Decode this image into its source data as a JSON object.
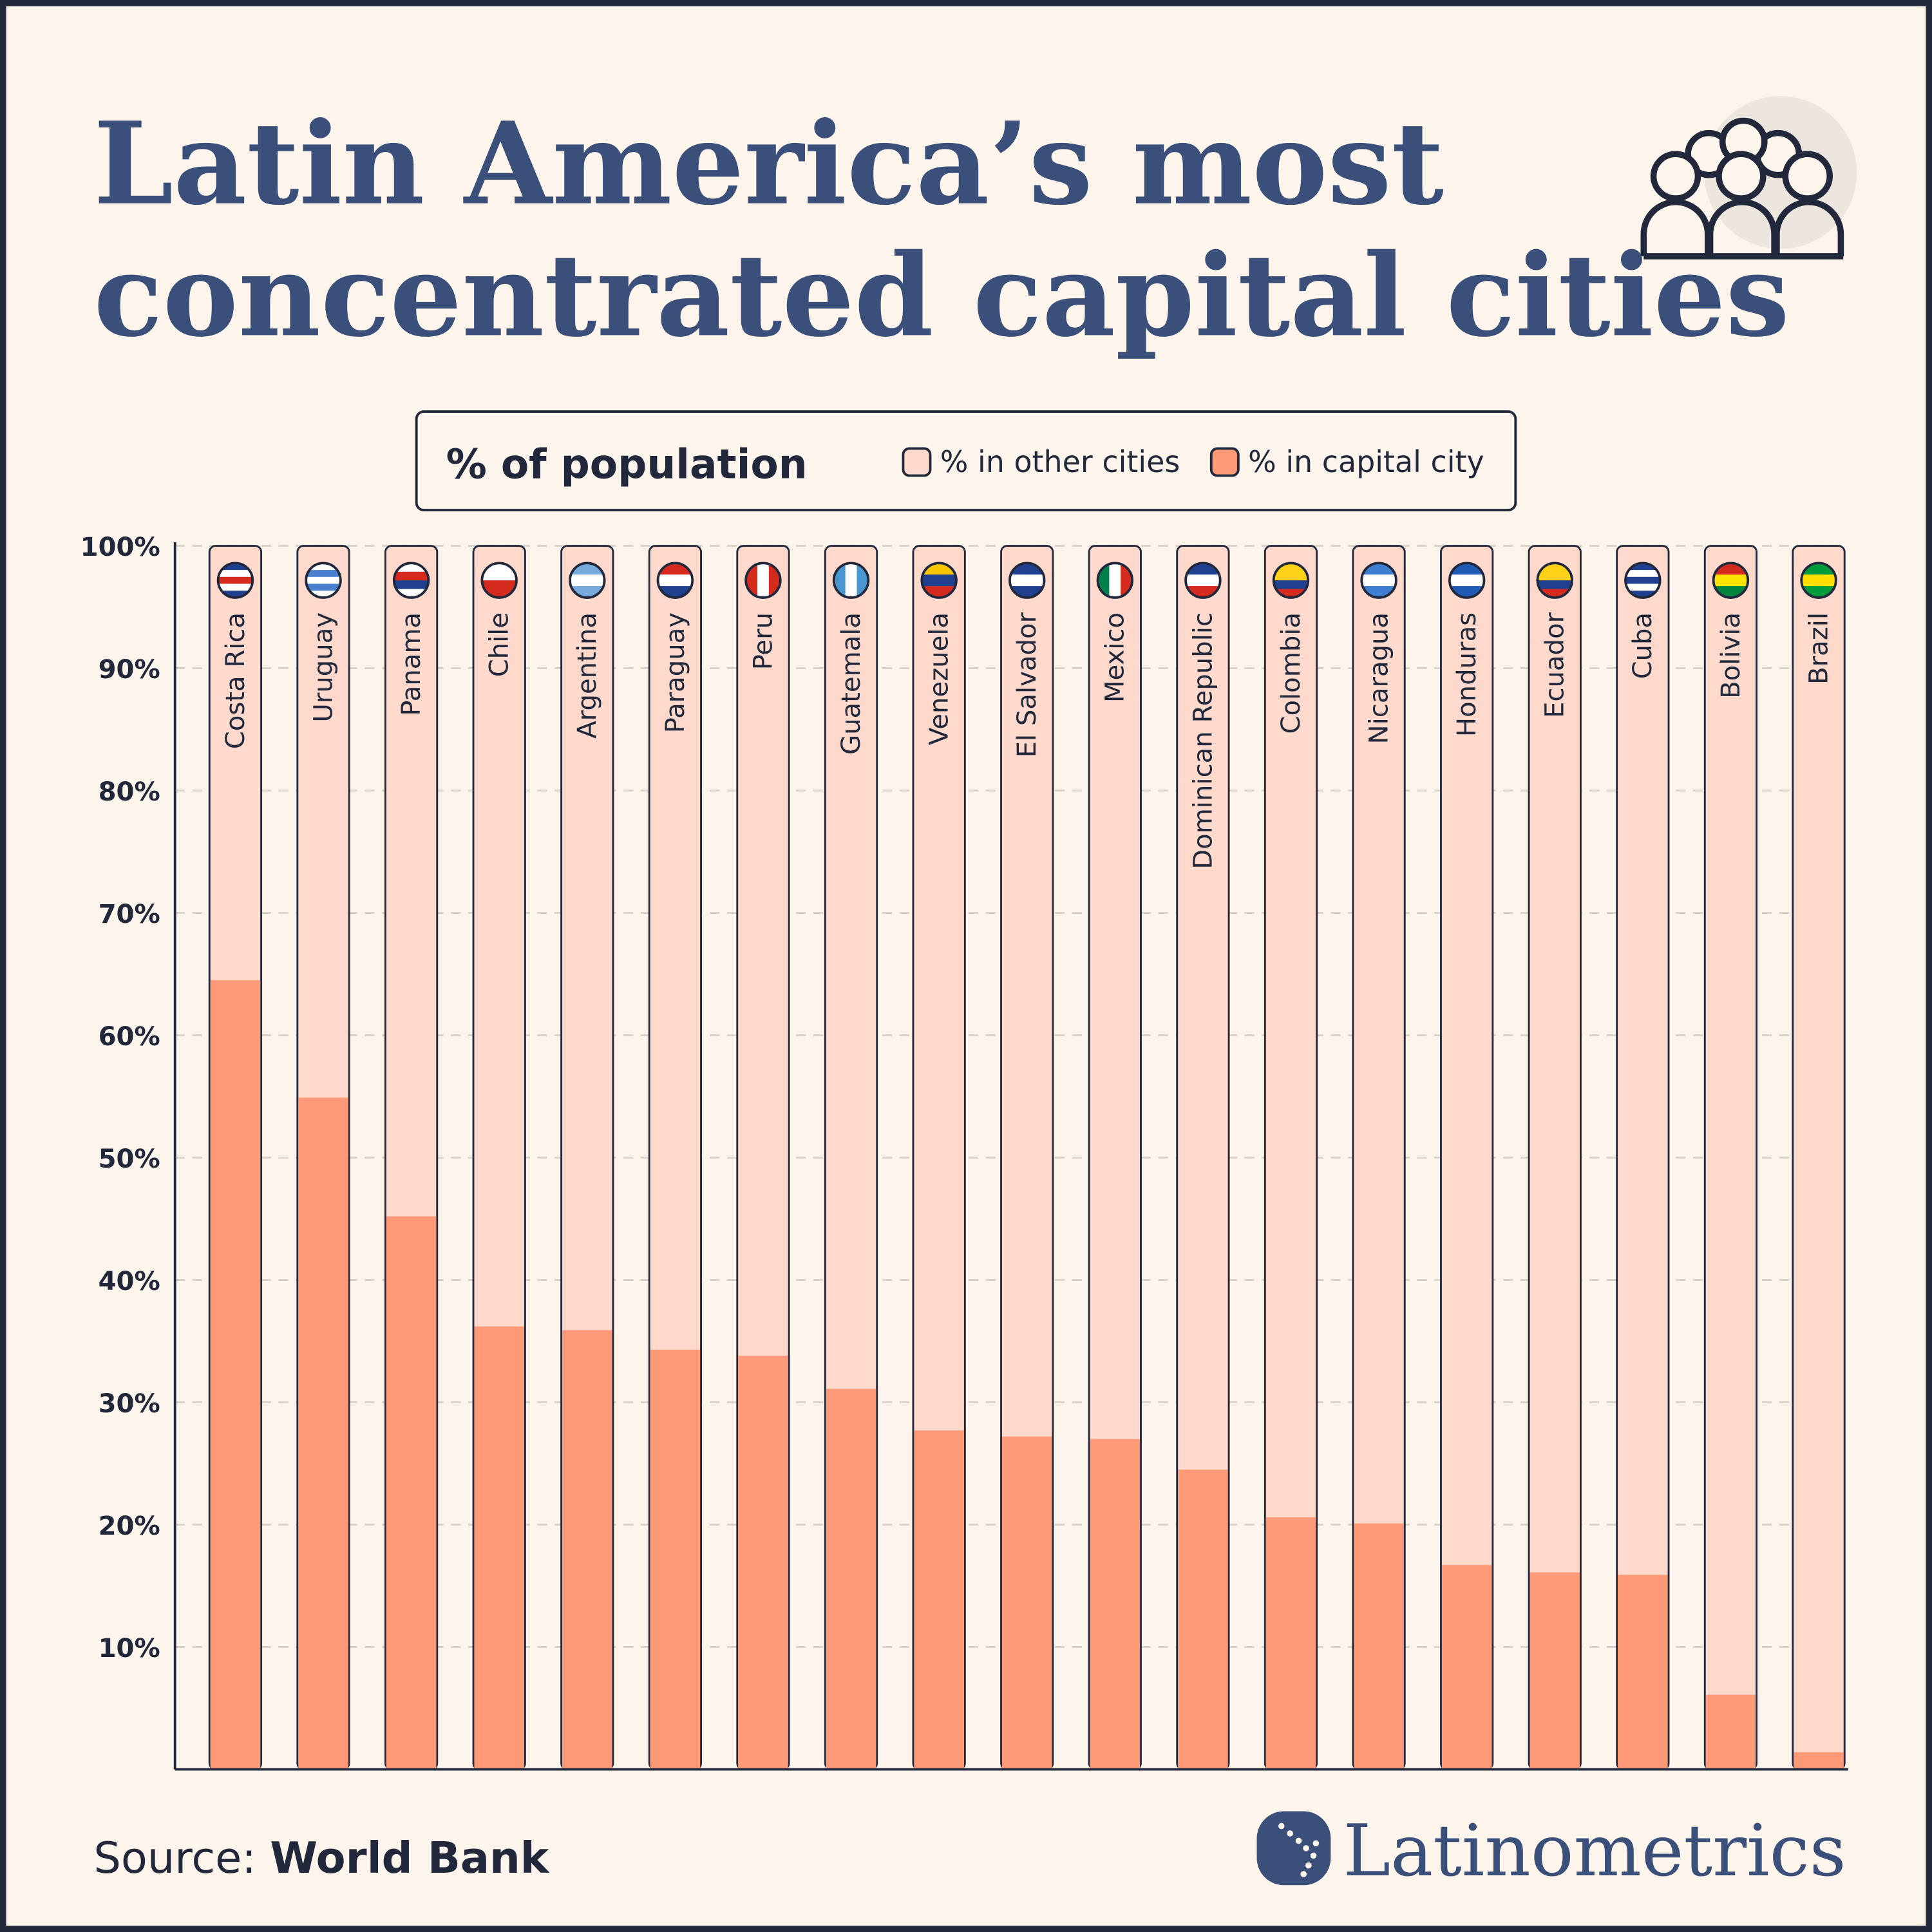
{
  "title_line1": "Latin America’s most",
  "title_line2": "concentrated capital cities",
  "legend": {
    "title": "% of population",
    "other": "% in other cities",
    "capital": "% in capital city"
  },
  "source_label": "Source:",
  "source_value": "World Bank",
  "brand": "Latinometrics",
  "icons": {
    "header": "people-group-icon",
    "brand": "latin-america-map-logo-icon"
  },
  "colors": {
    "capital": "#fe9a78",
    "other": "#fed9cc",
    "title": "#3a4f7a",
    "background": "#fdf5ec",
    "outline": "#22283c"
  },
  "chart_data": {
    "type": "bar",
    "stacked": true,
    "ylim": [
      0,
      100
    ],
    "yticks": [
      "10%",
      "20%",
      "30%",
      "40%",
      "50%",
      "60%",
      "70%",
      "80%",
      "90%",
      "100%"
    ],
    "grid": true,
    "legend_position": "top",
    "categories": [
      "Costa Rica",
      "Uruguay",
      "Panama",
      "Chile",
      "Argentina",
      "Paraguay",
      "Peru",
      "Guatemala",
      "Venezuela",
      "El Salvador",
      "Mexico",
      "Dominican Republic",
      "Colombia",
      "Nicaragua",
      "Honduras",
      "Ecuador",
      "Cuba",
      "Bolivia",
      "Brazil"
    ],
    "series": [
      {
        "name": "% in capital city",
        "values": [
          64.5,
          54.9,
          45.2,
          36.2,
          35.9,
          34.3,
          33.8,
          31.1,
          27.7,
          27.2,
          27.0,
          24.5,
          20.6,
          20.1,
          16.7,
          16.1,
          15.9,
          6.1,
          1.4
        ]
      },
      {
        "name": "% in other cities",
        "values": [
          35.5,
          45.1,
          54.8,
          63.8,
          64.1,
          65.7,
          66.2,
          68.9,
          72.3,
          72.8,
          73.0,
          75.5,
          79.4,
          79.9,
          83.3,
          83.9,
          84.1,
          93.9,
          98.6
        ]
      }
    ],
    "flags": [
      [
        "#1f3f8f",
        "#ffffff",
        "#d52b1e",
        "#ffffff",
        "#1f3f8f"
      ],
      [
        "#ffffff",
        "#4a7fd0",
        "#ffffff",
        "#4a7fd0",
        "#ffffff"
      ],
      [
        "#ffffff",
        "#d52b1e",
        "#1f3f8f",
        "#ffffff"
      ],
      [
        "#ffffff",
        "#d52b1e"
      ],
      [
        "#75aadb",
        "#ffffff",
        "#75aadb"
      ],
      [
        "#d52b1e",
        "#ffffff",
        "#1f3f8f"
      ],
      [
        "#d52b1e",
        "#ffffff",
        "#d52b1e"
      ],
      [
        "#4997d0",
        "#ffffff",
        "#4997d0"
      ],
      [
        "#f7c600",
        "#1f3f8f",
        "#d52b1e"
      ],
      [
        "#1f3f8f",
        "#ffffff",
        "#1f3f8f"
      ],
      [
        "#00804a",
        "#ffffff",
        "#d52b1e"
      ],
      [
        "#1f3f8f",
        "#ffffff",
        "#d52b1e"
      ],
      [
        "#fcd116",
        "#fcd116",
        "#1f3f8f",
        "#d52b1e"
      ],
      [
        "#3e7ed0",
        "#ffffff",
        "#3e7ed0"
      ],
      [
        "#1f5bb5",
        "#ffffff",
        "#1f5bb5"
      ],
      [
        "#fcd116",
        "#fcd116",
        "#1f3f8f",
        "#d52b1e"
      ],
      [
        "#1f3f8f",
        "#ffffff",
        "#1f3f8f",
        "#ffffff",
        "#1f3f8f"
      ],
      [
        "#d52b1e",
        "#f9e300",
        "#00853f"
      ],
      [
        "#009b3a",
        "#fedf00",
        "#009b3a"
      ]
    ]
  }
}
